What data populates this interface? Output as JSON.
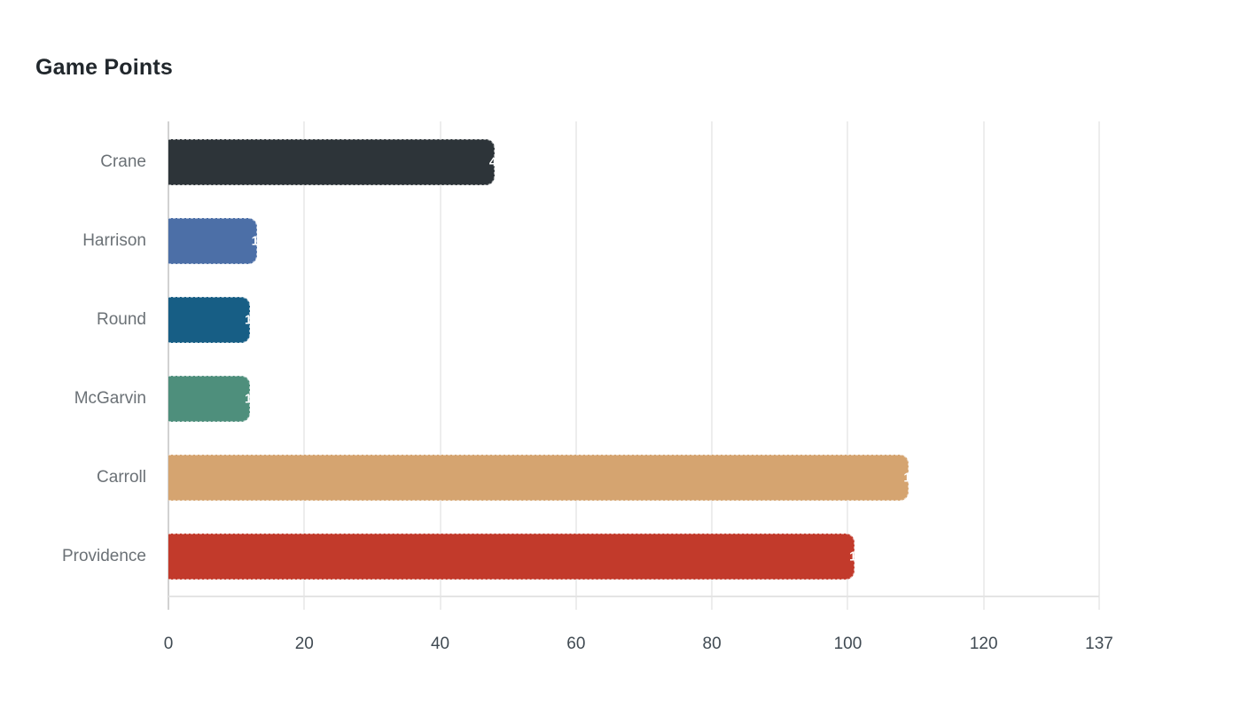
{
  "title": "Game Points",
  "chart_data": {
    "type": "bar",
    "orientation": "horizontal",
    "title": "Game Points",
    "categories": [
      "Crane",
      "Harrison",
      "Round",
      "McGarvin",
      "Carroll",
      "Providence"
    ],
    "values": [
      48,
      13,
      12,
      12,
      109,
      101
    ],
    "bar_colors": [
      "#2d3439",
      "#4c6fa7",
      "#175e85",
      "#4e8f7c",
      "#d5a470",
      "#c23a2b"
    ],
    "x_ticks": [
      0,
      20,
      40,
      60,
      80,
      100,
      120,
      137
    ],
    "xlim": [
      0,
      137
    ],
    "xlabel": "",
    "ylabel": "",
    "grid": true,
    "legend": "none",
    "value_label_color": "#ffffff",
    "value_label_position": "end-overflow"
  },
  "colors": {
    "background": "#ffffff",
    "title_text": "#21272c",
    "category_text": "#6b7176",
    "tick_text": "#404a52",
    "gridline": "#ededed",
    "zero_line": "#d2d2d2",
    "axis_line": "#e4e4e4"
  }
}
